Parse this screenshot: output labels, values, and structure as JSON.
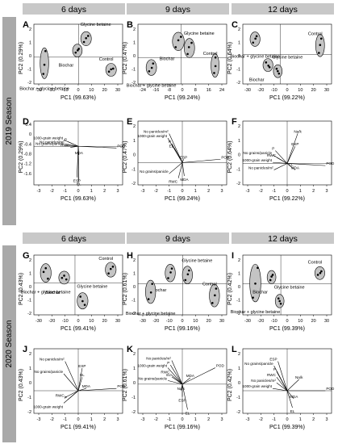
{
  "figure": {
    "headers": [
      "6 days",
      "9 days",
      "12 days"
    ],
    "seasons": [
      "2019 Season",
      "2020 Season"
    ],
    "colors": {
      "header_bg": "#c8c8c8",
      "season_bg": "#a9a9a9",
      "ellipse": "#c4c4c4",
      "stroke": "#000000"
    }
  },
  "chart_data": [
    {
      "panel": "A",
      "type": "scatter",
      "xlabel": "PC1 (99.63%)",
      "ylabel": "PC2 (0.29%)",
      "xticks": [
        "-30",
        "-20",
        "-10",
        "0",
        "10",
        "20",
        "30"
      ],
      "yticks": [],
      "groups": [
        {
          "name": "Glycine betaine",
          "x": [
            5,
            7,
            9
          ],
          "y": [
            2.0,
            2.5,
            2.8
          ]
        },
        {
          "name": "Biochar",
          "x": [
            -3,
            -1,
            0
          ],
          "y": [
            0.6,
            0.9,
            1.1
          ]
        },
        {
          "name": "Control",
          "x": [
            29,
            31,
            33
          ],
          "y": [
            -1.9,
            -1.6,
            -1.5
          ]
        },
        {
          "name": "Biochar + glycine betaine",
          "x": [
            -34,
            -33,
            -32
          ],
          "y": [
            -2.2,
            -1.0,
            0.8
          ]
        }
      ]
    },
    {
      "panel": "B",
      "type": "scatter",
      "xlabel": "PC1 (99.24%)",
      "ylabel": "PC2 (0.47%)",
      "xticks": [
        "-24",
        "-16",
        "-8",
        "0",
        "8",
        "16",
        "24"
      ],
      "yticks": [],
      "groups": [
        {
          "name": "Biochar",
          "x": [
            -4,
            -2,
            0
          ],
          "y": [
            1.2,
            2.0,
            2.4
          ]
        },
        {
          "name": "Glycine betaine",
          "x": [
            5,
            6,
            8
          ],
          "y": [
            0.4,
            1.2,
            1.7
          ]
        },
        {
          "name": "Biochar + glycine betaine",
          "x": [
            -24,
            -22,
            -21
          ],
          "y": [
            -1.6,
            -1.2,
            -0.7
          ]
        },
        {
          "name": "Control",
          "x": [
            25,
            26,
            26
          ],
          "y": [
            -1.8,
            -1.0,
            0.0
          ]
        }
      ]
    },
    {
      "panel": "C",
      "type": "scatter",
      "xlabel": "PC1 (99.22%)",
      "ylabel": "PC2 (0.64%)",
      "xticks": [
        "-30",
        "-20",
        "-10",
        "0",
        "10",
        "20",
        "30"
      ],
      "yticks": [],
      "groups": [
        {
          "name": "Biochar + glycine betaine",
          "x": [
            -23,
            -21,
            -20
          ],
          "y": [
            1.5,
            2.0,
            2.3
          ]
        },
        {
          "name": "Biochar",
          "x": [
            -12,
            -10,
            -9
          ],
          "y": [
            -1.0,
            -1.4,
            -1.6
          ]
        },
        {
          "name": "Glycine betaine",
          "x": [
            -3,
            -2,
            -1
          ],
          "y": [
            -1.8,
            -2.1,
            -2.4
          ]
        },
        {
          "name": "Control",
          "x": [
            33,
            34,
            35
          ],
          "y": [
            0.2,
            1.2,
            2.0
          ]
        }
      ]
    },
    {
      "panel": "D",
      "type": "biplot",
      "xlabel": "PC1 (99.63%)",
      "ylabel": "PC2 (0.29%)",
      "xticks": [
        "-3",
        "-2",
        "-1",
        "0",
        "1",
        "2",
        "3"
      ],
      "yticks": [
        "0.4",
        "0",
        "-0.4",
        "-0.8",
        "-1.2",
        "-1.6"
      ],
      "loadings": [
        {
          "label": "POD",
          "x": 2.9,
          "y": -0.08
        },
        {
          "label": "1000-grain weight",
          "x": -1.1,
          "y": 0.3
        },
        {
          "label": "P",
          "x": -0.8,
          "y": 0.22
        },
        {
          "label": "No panicles/m²",
          "x": -1.0,
          "y": 0.1
        },
        {
          "label": "No grains/panicle",
          "x": -1.0,
          "y": 0.02
        },
        {
          "label": "RWC",
          "x": -0.6,
          "y": -0.05
        },
        {
          "label": "MDA",
          "x": 0.05,
          "y": -0.4
        },
        {
          "label": "ESP",
          "x": -0.1,
          "y": -1.45
        },
        {
          "label": "EL",
          "x": 0.05,
          "y": -1.6
        }
      ]
    },
    {
      "panel": "E",
      "type": "biplot",
      "xlabel": "PC1 (99.24%)",
      "ylabel": "PC2 (0.47%)",
      "xticks": [
        "-3",
        "-2",
        "-1",
        "0",
        "1",
        "2",
        "3"
      ],
      "yticks": [],
      "loadings": [
        {
          "label": "POD",
          "x": 2.9,
          "y": 0.15
        },
        {
          "label": "No panicles/m²",
          "x": -1.0,
          "y": 1.3
        },
        {
          "label": "1000-grain weight",
          "x": -1.1,
          "y": 1.1
        },
        {
          "label": "P",
          "x": -0.8,
          "y": 0.85
        },
        {
          "label": "EL",
          "x": -0.6,
          "y": 0.65
        },
        {
          "label": "ESP",
          "x": 0.1,
          "y": 0.15
        },
        {
          "label": "No grains/panicle",
          "x": -1.0,
          "y": -0.5
        },
        {
          "label": "RWC",
          "x": -0.3,
          "y": -0.7
        },
        {
          "label": "MDA",
          "x": 0.15,
          "y": -0.6
        }
      ]
    },
    {
      "panel": "F",
      "type": "biplot",
      "xlabel": "PC1 (99.22%)",
      "ylabel": "PC2 (0.64%)",
      "xticks": [
        "-3",
        "-2",
        "-1",
        "0",
        "1",
        "2",
        "3"
      ],
      "yticks": [],
      "loadings": [
        {
          "label": "Na/k",
          "x": 0.8,
          "y": 1.4
        },
        {
          "label": "ESP",
          "x": 0.6,
          "y": 0.8
        },
        {
          "label": "P",
          "x": -0.9,
          "y": 0.6
        },
        {
          "label": "No grains/panicle",
          "x": -1.1,
          "y": 0.4
        },
        {
          "label": "RWC",
          "x": -0.8,
          "y": 0.28
        },
        {
          "label": "1000-grain weight",
          "x": -1.1,
          "y": 0.05
        },
        {
          "label": "No panicles/m²",
          "x": -1.0,
          "y": -0.3
        },
        {
          "label": "EL",
          "x": 0.3,
          "y": -0.15
        },
        {
          "label": "MDA",
          "x": 0.6,
          "y": -0.3
        },
        {
          "label": "POD",
          "x": 2.9,
          "y": -0.1
        }
      ]
    },
    {
      "panel": "G",
      "type": "scatter",
      "xlabel": "PC1 (99.41%)",
      "ylabel": "PC2 (0.43%)",
      "xticks": [
        "-30",
        "-20",
        "-10",
        "0",
        "10",
        "20",
        "30"
      ],
      "yticks": [],
      "groups": [
        {
          "name": "Biochar + glycine betaine",
          "x": [
            -29,
            -27,
            -25
          ],
          "y": [
            1.5,
            2.0,
            0.6
          ]
        },
        {
          "name": "Biochar",
          "x": [
            -12,
            -10,
            -8
          ],
          "y": [
            0.7,
            1.0,
            0.5
          ]
        },
        {
          "name": "Control",
          "x": [
            31,
            33,
            35
          ],
          "y": [
            1.3,
            1.9,
            2.2
          ]
        },
        {
          "name": "Glycine betaine",
          "x": [
            5,
            7,
            9
          ],
          "y": [
            -1.8,
            -2.4,
            -2.9
          ]
        }
      ]
    },
    {
      "panel": "H",
      "type": "scatter",
      "xlabel": "PC1 (99.16%)",
      "ylabel": "PC2 (0.61%)",
      "xticks": [
        "-30",
        "-20",
        "-10",
        "0",
        "10",
        "20",
        "30"
      ],
      "yticks": [],
      "groups": [
        {
          "name": "Biochar",
          "x": [
            -12,
            -10,
            -9
          ],
          "y": [
            0.6,
            1.2,
            1.6
          ]
        },
        {
          "name": "Glycine betaine",
          "x": [
            2,
            4,
            5
          ],
          "y": [
            0.4,
            1.0,
            1.4
          ]
        },
        {
          "name": "Biochar + glycine betaine",
          "x": [
            -28,
            -26,
            -25
          ],
          "y": [
            -1.6,
            -0.9,
            0.0
          ]
        },
        {
          "name": "Control",
          "x": [
            24,
            26,
            27
          ],
          "y": [
            -2.0,
            -1.2,
            -0.5
          ]
        }
      ]
    },
    {
      "panel": "I",
      "type": "scatter",
      "xlabel": "PC1 (99.39%)",
      "ylabel": "PC2 (0.42%)",
      "xticks": [
        "-30",
        "-20",
        "-10",
        "0",
        "10",
        "20",
        "30"
      ],
      "yticks": [],
      "groups": [
        {
          "name": "Biochar + glycine betaine",
          "x": [
            -24,
            -22,
            -20
          ],
          "y": [
            -1.6,
            0.0,
            1.8
          ]
        },
        {
          "name": "Biochar",
          "x": [
            -9,
            -8,
            -7
          ],
          "y": [
            0.4,
            0.8,
            1.0
          ]
        },
        {
          "name": "Glycine betaine",
          "x": [
            -2,
            -1,
            0
          ],
          "y": [
            -1.7,
            -2.0,
            -2.3
          ]
        },
        {
          "name": "Control",
          "x": [
            32,
            34,
            35
          ],
          "y": [
            1.0,
            1.2,
            1.4
          ]
        }
      ]
    },
    {
      "panel": "J",
      "type": "biplot",
      "xlabel": "PC1 (99.41%)",
      "ylabel": "PC2 (0.43%)",
      "xticks": [
        "-3",
        "-2",
        "-1",
        "0",
        "1",
        "2",
        "3"
      ],
      "yticks": [],
      "loadings": [
        {
          "label": "No panicles/m²",
          "x": -1.0,
          "y": 1.3
        },
        {
          "label": "ESP",
          "x": 0.3,
          "y": 1.0
        },
        {
          "label": "No grains/panicle",
          "x": -1.1,
          "y": 0.75
        },
        {
          "label": "EL",
          "x": 0.3,
          "y": 0.6
        },
        {
          "label": "MDA",
          "x": 0.6,
          "y": 0.1
        },
        {
          "label": "POD",
          "x": 2.9,
          "y": 0.1
        },
        {
          "label": "RWC",
          "x": -1.0,
          "y": -0.3
        },
        {
          "label": "P",
          "x": -0.8,
          "y": -0.4
        },
        {
          "label": "1000-grain weight",
          "x": -1.1,
          "y": -0.55
        }
      ]
    },
    {
      "panel": "K",
      "type": "biplot",
      "xlabel": "PC1 (99.16%)",
      "ylabel": "PC2 (0.61%)",
      "xticks": [
        "-3",
        "-2",
        "-1",
        "0",
        "1",
        "2",
        "3"
      ],
      "yticks": [],
      "loadings": [
        {
          "label": "No panicles/m²",
          "x": -0.8,
          "y": 1.3
        },
        {
          "label": "P",
          "x": -0.9,
          "y": 1.05
        },
        {
          "label": "1000-grain weight",
          "x": -1.1,
          "y": 0.9
        },
        {
          "label": "RWC",
          "x": -0.9,
          "y": 0.55
        },
        {
          "label": "EL",
          "x": -0.8,
          "y": 0.4
        },
        {
          "label": "No grains/panicle",
          "x": -1.1,
          "y": 0.2
        },
        {
          "label": "MDA",
          "x": 0.6,
          "y": 0.35
        },
        {
          "label": "POD",
          "x": 2.5,
          "y": 0.9
        },
        {
          "label": "Na/k",
          "x": -0.1,
          "y": -0.35
        },
        {
          "label": "ESP",
          "x": 0.0,
          "y": -0.7
        },
        {
          "label": "EL",
          "x": 0.4,
          "y": -1.4
        }
      ]
    },
    {
      "panel": "L",
      "type": "biplot",
      "xlabel": "PC1 (99.39%)",
      "ylabel": "PC2 (0.42%)",
      "xticks": [
        "-3",
        "-2",
        "-1",
        "0",
        "1",
        "2",
        "3"
      ],
      "yticks": [],
      "loadings": [
        {
          "label": "ESP",
          "x": -0.7,
          "y": 1.3
        },
        {
          "label": "No grains/panicle",
          "x": -1.0,
          "y": 1.1
        },
        {
          "label": "P",
          "x": -0.8,
          "y": 0.85
        },
        {
          "label": "RWC",
          "x": -0.8,
          "y": 0.6
        },
        {
          "label": "Na/k",
          "x": 0.9,
          "y": 0.5
        },
        {
          "label": "No panicles/m²",
          "x": -0.8,
          "y": 0.35
        },
        {
          "label": "1000-grain weight",
          "x": -1.1,
          "y": 0.1
        },
        {
          "label": "POD",
          "x": 2.9,
          "y": 0.0
        },
        {
          "label": "MDA",
          "x": 0.5,
          "y": -0.35
        },
        {
          "label": "EL",
          "x": 0.4,
          "y": -0.75
        }
      ]
    }
  ]
}
